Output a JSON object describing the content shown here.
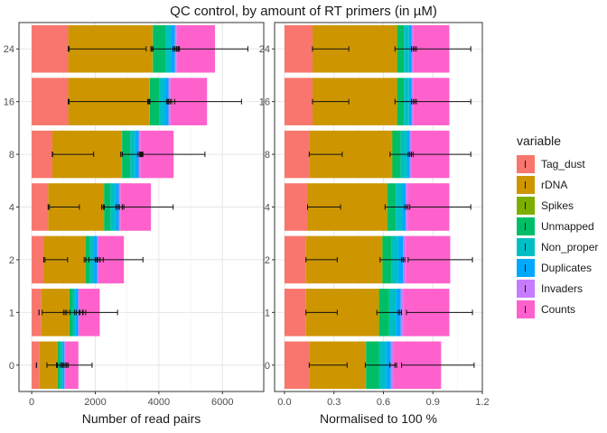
{
  "title": "QC control, by amount of RT primers (in µM)",
  "colors": {
    "Tag_dust": "#F8766D",
    "rDNA": "#CD9600",
    "Spikes": "#7CAE00",
    "Unmapped": "#00BE67",
    "Non_proper": "#00BFC4",
    "Duplicates": "#00A9FF",
    "Invaders": "#C77CFF",
    "Counts": "#FF61CC"
  },
  "legend": {
    "title": "variable",
    "items": [
      "Tag_dust",
      "rDNA",
      "Spikes",
      "Unmapped",
      "Non_proper",
      "Duplicates",
      "Invaders",
      "Counts"
    ]
  },
  "chart_data": [
    {
      "type": "bar",
      "orientation": "horizontal",
      "stacked": true,
      "xlabel": "Number of read pairs",
      "ylabel": "",
      "xlim": [
        -400,
        7300
      ],
      "xticks": [
        0,
        2000,
        4000,
        6000
      ],
      "xtick_labels": [
        "0",
        "2000",
        "4000",
        "6000"
      ],
      "categories": [
        "0",
        "1",
        "2",
        "4",
        "8",
        "16",
        "24"
      ],
      "series": [
        {
          "name": "Tag_dust",
          "values": [
            250,
            300,
            380,
            520,
            650,
            1150,
            1150
          ]
        },
        {
          "name": "rDNA",
          "values": [
            550,
            880,
            1300,
            1750,
            2180,
            2550,
            2650
          ]
        },
        {
          "name": "Spikes",
          "values": [
            10,
            10,
            10,
            10,
            15,
            15,
            15
          ]
        },
        {
          "name": "Unmapped",
          "values": [
            90,
            100,
            150,
            200,
            260,
            300,
            400
          ]
        },
        {
          "name": "Non_proper",
          "values": [
            70,
            90,
            120,
            150,
            150,
            160,
            160
          ]
        },
        {
          "name": "Duplicates",
          "values": [
            60,
            80,
            100,
            110,
            110,
            130,
            130
          ]
        },
        {
          "name": "Invaders",
          "values": [
            20,
            30,
            40,
            50,
            50,
            60,
            60
          ]
        },
        {
          "name": "Counts",
          "values": [
            420,
            650,
            800,
            960,
            1050,
            1150,
            1200
          ]
        }
      ],
      "error_bars": [
        {
          "series": "Tag_dust",
          "low": [
            150,
            230,
            380,
            520,
            650,
            1150,
            1150
          ],
          "high": [
            150,
            230,
            380,
            520,
            650,
            1150,
            1150
          ]
        },
        {
          "series": "rDNA",
          "low": [
            480,
            330,
            420,
            560,
            660,
            1180,
            1180
          ],
          "high": [
            1050,
            1050,
            1130,
            1500,
            1950,
            3700,
            3600
          ]
        },
        {
          "series": "Spikes",
          "low": [
            790,
            1000,
            1700,
            2280,
            2850,
            3680,
            3780
          ],
          "high": [
            810,
            1200,
            1700,
            2280,
            2850,
            3720,
            3820
          ]
        },
        {
          "series": "Unmapped",
          "low": [
            780,
            1100,
            1650,
            2200,
            2800,
            3650,
            3750
          ],
          "high": [
            1100,
            1500,
            2050,
            2700,
            3400,
            4300,
            4500
          ]
        },
        {
          "series": "Non_proper",
          "low": [
            900,
            1400,
            2000,
            2650,
            3350,
            4250,
            4450
          ],
          "high": [
            1050,
            1600,
            2150,
            2850,
            3450,
            4350,
            4550
          ]
        },
        {
          "series": "Duplicates",
          "low": [
            960,
            1520,
            2050,
            2750,
            3420,
            4300,
            4500
          ],
          "high": [
            1100,
            1620,
            2150,
            2850,
            3480,
            4400,
            4620
          ]
        },
        {
          "series": "Invaders",
          "low": [
            1000,
            1500,
            2080,
            2760,
            3430,
            4280,
            4560
          ],
          "high": [
            1150,
            1700,
            2250,
            2900,
            3500,
            4500,
            4650
          ]
        },
        {
          "series": "Counts",
          "low": [
            950,
            1350,
            1800,
            2250,
            3350,
            4350,
            4600
          ],
          "high": [
            1900,
            2700,
            3500,
            4450,
            5450,
            6600,
            6800
          ]
        }
      ],
      "grid": true
    },
    {
      "type": "bar",
      "orientation": "horizontal",
      "stacked": true,
      "xlabel": "Normalised to 100 %",
      "ylabel": "",
      "xlim": [
        -0.06,
        1.2
      ],
      "xticks": [
        0.0,
        0.3,
        0.6,
        0.9,
        1.2
      ],
      "xtick_labels": [
        "0.0",
        "0.3",
        "0.6",
        "0.9",
        "1.2"
      ],
      "categories": [
        "0",
        "1",
        "2",
        "4",
        "8",
        "16",
        "24"
      ],
      "series": [
        {
          "name": "Tag_dust",
          "values": [
            0.15,
            0.13,
            0.13,
            0.14,
            0.15,
            0.17,
            0.17
          ]
        },
        {
          "name": "rDNA",
          "values": [
            0.34,
            0.44,
            0.46,
            0.48,
            0.5,
            0.51,
            0.51
          ]
        },
        {
          "name": "Spikes",
          "values": [
            0.005,
            0.005,
            0.005,
            0.005,
            0.005,
            0.005,
            0.005
          ]
        },
        {
          "name": "Unmapped",
          "values": [
            0.08,
            0.06,
            0.055,
            0.05,
            0.05,
            0.04,
            0.04
          ]
        },
        {
          "name": "Non_proper",
          "values": [
            0.04,
            0.04,
            0.04,
            0.04,
            0.04,
            0.03,
            0.03
          ]
        },
        {
          "name": "Duplicates",
          "values": [
            0.03,
            0.03,
            0.03,
            0.02,
            0.015,
            0.015,
            0.015
          ]
        },
        {
          "name": "Invaders",
          "values": [
            0.015,
            0.015,
            0.015,
            0.015,
            0.01,
            0.01,
            0.01
          ]
        },
        {
          "name": "Counts",
          "values": [
            0.29,
            0.28,
            0.27,
            0.25,
            0.23,
            0.22,
            0.22
          ]
        }
      ],
      "error_bars": [
        {
          "series": "rDNA",
          "low": [
            0.15,
            0.13,
            0.13,
            0.14,
            0.15,
            0.17,
            0.17
          ],
          "high": [
            0.38,
            0.32,
            0.32,
            0.34,
            0.35,
            0.39,
            0.39
          ]
        },
        {
          "series": "Unmapped",
          "low": [
            0.49,
            0.56,
            0.58,
            0.61,
            0.64,
            0.67,
            0.67
          ],
          "high": [
            0.67,
            0.7,
            0.72,
            0.74,
            0.77,
            0.79,
            0.79
          ]
        },
        {
          "series": "Invaders",
          "low": [
            0.64,
            0.69,
            0.71,
            0.73,
            0.75,
            0.77,
            0.77
          ],
          "high": [
            0.68,
            0.71,
            0.73,
            0.75,
            0.78,
            0.8,
            0.8
          ]
        },
        {
          "series": "Counts",
          "low": [
            0.71,
            0.74,
            0.75,
            0.76,
            0.76,
            0.78,
            0.78
          ],
          "high": [
            1.15,
            1.14,
            1.14,
            1.13,
            1.13,
            1.13,
            1.13
          ]
        }
      ],
      "grid": true
    }
  ]
}
